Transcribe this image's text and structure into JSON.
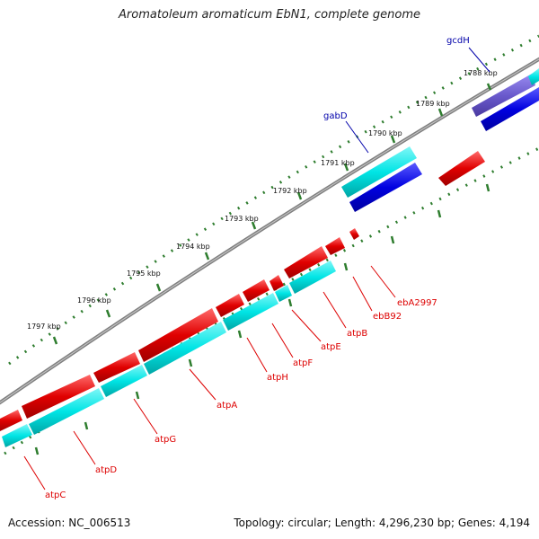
{
  "title": "Aromatoleum aromaticum EbN1, complete genome",
  "footer": {
    "accession": "Accession: NC_006513",
    "summary": "Topology: circular; Length: 4,296,230 bp; Genes: 4,194"
  },
  "colors": {
    "backbone": "#808080",
    "ruler_ticks": "#2e7d2e",
    "forward_cds": "#00e5e5",
    "reverse_cds": "#e00000",
    "forward_dark": "#0000e0",
    "forward_violet": "#6a5acd",
    "label_forward": "#0000aa",
    "label_reverse": "#dd0000"
  },
  "ruler": {
    "ticks": [
      {
        "label": "1788 kbp"
      },
      {
        "label": "1789 kbp"
      },
      {
        "label": "1790 kbp"
      },
      {
        "label": "1791 kbp"
      },
      {
        "label": "1792 kbp"
      },
      {
        "label": "1793 kbp"
      },
      {
        "label": "1794 kbp"
      },
      {
        "label": "1795 kbp"
      },
      {
        "label": "1796 kbp"
      },
      {
        "label": "1797 kbp"
      }
    ]
  },
  "gene_labels": {
    "top": [
      {
        "label": "gcdH"
      },
      {
        "label": "gabD"
      }
    ],
    "bottom": [
      {
        "label": "ebA2997"
      },
      {
        "label": "ebB92"
      },
      {
        "label": "atpB"
      },
      {
        "label": "atpE"
      },
      {
        "label": "atpF"
      },
      {
        "label": "atpH"
      },
      {
        "label": "atpA"
      },
      {
        "label": "atpG"
      },
      {
        "label": "atpD"
      },
      {
        "label": "atpC"
      }
    ]
  }
}
